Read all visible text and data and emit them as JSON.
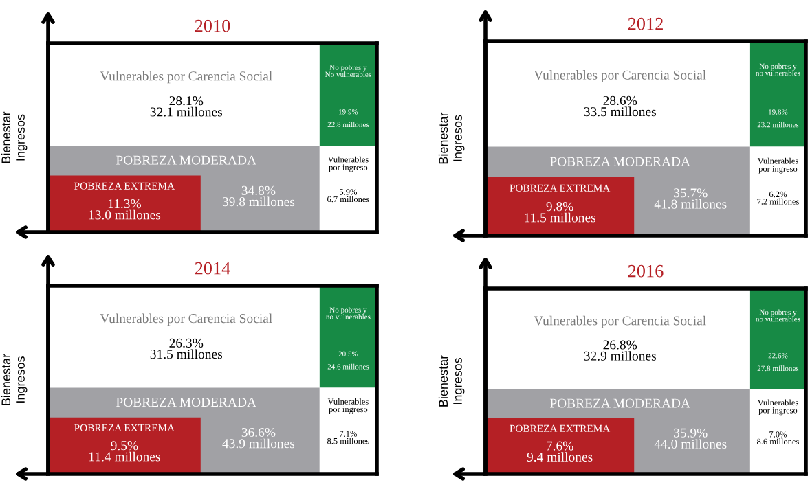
{
  "chart_data": [
    {
      "type": "other",
      "title": "2010",
      "ylabel": "Bienestar\nIngresos",
      "categories": [
        "Vulnerables por Carencia Social",
        "No pobres y\nNo vulnerables",
        "POBREZA MODERADA",
        "POBREZA EXTREMA",
        "Vulnerables\npor ingreso"
      ],
      "values": [
        28.1,
        19.9,
        34.8,
        11.3,
        5.9
      ],
      "value_labels": [
        "28.1%\n32.1 millones",
        "19.9%\n\n22.8 millones",
        "34.8%\n39.8 millones",
        "11.3%\n13.0 millones",
        "5.9%\n6.7 millones"
      ],
      "colors": [
        "#ffffff",
        "#178a45",
        "#a1a1a5",
        "#b52025",
        "#ffffff"
      ]
    },
    {
      "type": "other",
      "title": "2012",
      "ylabel": "Bienestar\nIngresos",
      "categories": [
        "Vulnerables por Carencia Social",
        "No pobres y\nno vulnerables",
        "POBREZA MODERADA",
        "POBREZA EXTREMA",
        "Vulnerables\npor ingreso"
      ],
      "values": [
        28.6,
        19.8,
        35.7,
        9.8,
        6.2
      ],
      "value_labels": [
        "28.6%\n33.5 millones",
        "19.8%\n\n23.2 millones",
        "35.7%\n41.8 millones",
        "9.8%\n11.5 millones",
        "6.2%\n7.2 millones"
      ],
      "colors": [
        "#ffffff",
        "#178a45",
        "#a1a1a5",
        "#b52025",
        "#ffffff"
      ]
    },
    {
      "type": "other",
      "title": "2014",
      "ylabel": "Bienestar\nIngresos",
      "categories": [
        "Vulnerables por Carencia Social",
        "No pobres y\nno vulnerables",
        "POBREZA MODERADA",
        "POBREZA EXTREMA",
        "Vulnerables\npor ingreso"
      ],
      "values": [
        26.3,
        20.5,
        36.6,
        9.5,
        7.1
      ],
      "value_labels": [
        "26.3%\n31.5 millones",
        "20.5%\n\n24.6 millones",
        "36.6%\n43.9 millones",
        "9.5%\n11.4 millones",
        "7.1%\n8.5 millones"
      ],
      "colors": [
        "#ffffff",
        "#178a45",
        "#a1a1a5",
        "#b52025",
        "#ffffff"
      ]
    },
    {
      "type": "other",
      "title": "2016",
      "ylabel": "Bienestar\nIngresos",
      "categories": [
        "Vulnerables por Carencia Social",
        "No pobres y\nno vulnerables",
        "POBREZA MODERADA",
        "POBREZA EXTREMA",
        "Vulnerables\npor ingreso"
      ],
      "values": [
        26.8,
        22.6,
        35.9,
        7.6,
        7.0
      ],
      "value_labels": [
        "26.8%\n32.9 millones",
        "22.6%\n\n27.8 millones",
        "35.9%\n44.0 millones",
        "7.6%\n9.4 millones",
        "7.0%\n8.6 millones"
      ],
      "colors": [
        "#ffffff",
        "#178a45",
        "#a1a1a5",
        "#b52025",
        "#ffffff"
      ]
    }
  ]
}
